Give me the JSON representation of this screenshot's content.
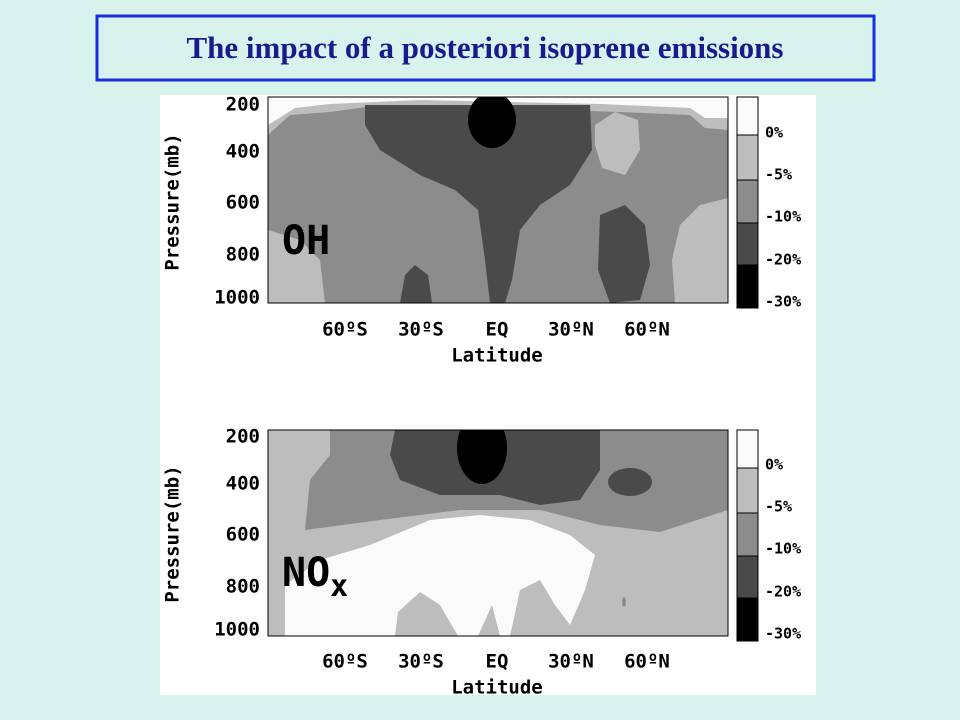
{
  "title": "The impact of a posteriori isoprene emissions",
  "panels": [
    {
      "species": "OH",
      "y_label": "Pressure(mb)",
      "y_ticks": [
        "200",
        "400",
        "600",
        "800",
        "1000"
      ],
      "x_ticks": [
        "60ºS",
        "30ºS",
        "EQ",
        "30ºN",
        "60ºN"
      ],
      "x_label": "Latitude",
      "colorbar": [
        "0%",
        "-5%",
        "-10%",
        "-20%",
        "-30%"
      ]
    },
    {
      "species": "NO",
      "species_subscript": "x",
      "y_label": "Pressure(mb)",
      "y_ticks": [
        "200",
        "400",
        "600",
        "800",
        "1000"
      ],
      "x_ticks": [
        "60ºS",
        "30ºS",
        "EQ",
        "30ºN",
        "60ºN"
      ],
      "x_label": "Latitude",
      "colorbar": [
        "0%",
        "-5%",
        "-10%",
        "-20%",
        "-30%"
      ]
    }
  ]
}
